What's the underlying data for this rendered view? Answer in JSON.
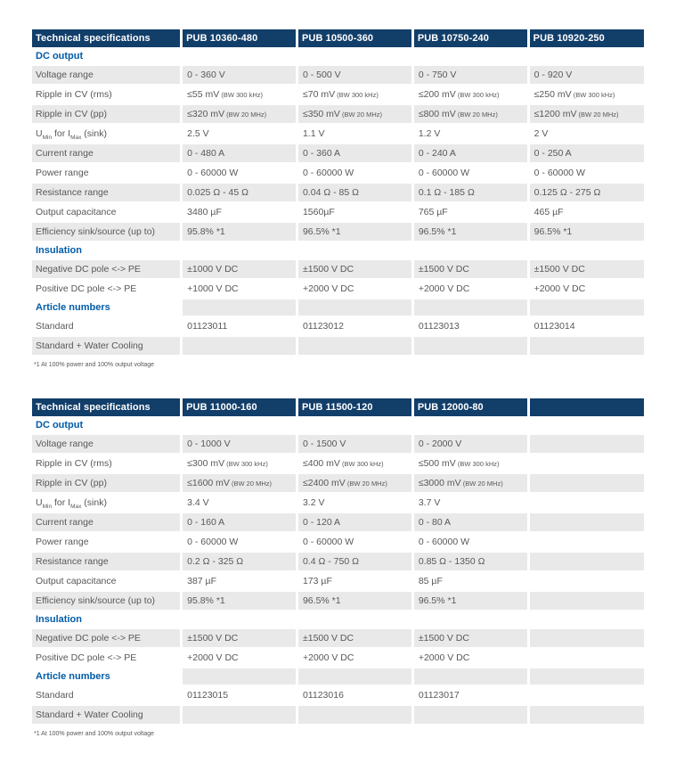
{
  "colors": {
    "header_bg": "#123e6a",
    "header_text": "#ffffff",
    "section_text": "#005ca9",
    "row_alt_bg": "#e9e9e9",
    "body_text": "#58585a",
    "page_bg": "#ffffff"
  },
  "tables": [
    {
      "headers": [
        "Technical specifications",
        "PUB 10360-480",
        "PUB 10500-360",
        "PUB 10750-240",
        "PUB 10920-250"
      ],
      "footnote": "*1 At 100% power and 100% output voltage",
      "rows": [
        {
          "type": "section",
          "label": "DC output"
        },
        {
          "type": "data",
          "label": "Voltage range",
          "values": [
            "0 - 360 V",
            "0 - 500 V",
            "0 - 750 V",
            "0 - 920 V"
          ]
        },
        {
          "type": "data",
          "label": "Ripple in CV (rms)",
          "values": [
            {
              "main": "≤55 mV",
              "note": "(BW 300 kHz)"
            },
            {
              "main": "≤70 mV",
              "note": "(BW 300 kHz)"
            },
            {
              "main": "≤200 mV",
              "note": "(BW 300 kHz)"
            },
            {
              "main": "≤250 mV",
              "note": "(BW 300 kHz)"
            }
          ]
        },
        {
          "type": "data",
          "label": "Ripple in CV (pp)",
          "values": [
            {
              "main": "≤320 mV",
              "note": "(BW 20 MHz)"
            },
            {
              "main": "≤350 mV",
              "note": "(BW 20 MHz)"
            },
            {
              "main": "≤800 mV",
              "note": "(BW 20 MHz)"
            },
            {
              "main": "≤1200 mV",
              "note": "(BW 20 MHz)"
            }
          ]
        },
        {
          "type": "data",
          "label": {
            "rich": [
              {
                "t": "U"
              },
              {
                "t": "Min",
                "sub": true
              },
              {
                "t": " for I"
              },
              {
                "t": "Max",
                "sub": true
              },
              {
                "t": " (sink)"
              }
            ]
          },
          "values": [
            "2.5 V",
            "1.1 V",
            "1.2 V",
            "2 V"
          ]
        },
        {
          "type": "data",
          "label": "Current range",
          "values": [
            "0 - 480 A",
            "0 - 360 A",
            "0 - 240 A",
            "0 - 250 A"
          ]
        },
        {
          "type": "data",
          "label": "Power range",
          "values": [
            "0 - 60000 W",
            "0 - 60000 W",
            "0 - 60000 W",
            "0 - 60000 W"
          ]
        },
        {
          "type": "data",
          "label": "Resistance range",
          "values": [
            "0.025 Ω - 45 Ω",
            "0.04 Ω - 85 Ω",
            "0.1 Ω - 185 Ω",
            "0.125 Ω - 275 Ω"
          ]
        },
        {
          "type": "data",
          "label": "Output capacitance",
          "values": [
            "3480 µF",
            "1560µF",
            "765 µF",
            "465 µF"
          ]
        },
        {
          "type": "data",
          "label": "Efficiency sink/source (up to)",
          "values": [
            "95.8% *1",
            "96.5% *1",
            "96.5% *1",
            "96.5% *1"
          ]
        },
        {
          "type": "section",
          "label": "Insulation"
        },
        {
          "type": "data",
          "label": "Negative DC pole <-> PE",
          "values": [
            "±1000 V DC",
            "±1500 V DC",
            "±1500 V DC",
            "±1500 V DC"
          ]
        },
        {
          "type": "data",
          "label": "Positive DC pole <-> PE",
          "values": [
            "+1000 V DC",
            "+2000 V DC",
            "+2000 V DC",
            "+2000 V DC"
          ]
        },
        {
          "type": "section",
          "label": "Article numbers"
        },
        {
          "type": "data",
          "label": "Standard",
          "values": [
            "01123011",
            "01123012",
            "01123013",
            "01123014"
          ]
        },
        {
          "type": "data",
          "label": "Standard + Water Cooling",
          "values": [
            "",
            "",
            "",
            ""
          ]
        }
      ]
    },
    {
      "headers": [
        "Technical specifications",
        "PUB 11000-160",
        "PUB 11500-120",
        "PUB 12000-80",
        ""
      ],
      "footnote": "*1 At 100% power and 100% output voltage",
      "rows": [
        {
          "type": "section",
          "label": "DC output"
        },
        {
          "type": "data",
          "label": "Voltage range",
          "values": [
            "0 - 1000 V",
            "0 - 1500 V",
            "0 - 2000 V",
            ""
          ]
        },
        {
          "type": "data",
          "label": "Ripple in CV (rms)",
          "values": [
            {
              "main": "≤300 mV",
              "note": "(BW 300 kHz)"
            },
            {
              "main": "≤400 mV",
              "note": "(BW 300 kHz)"
            },
            {
              "main": "≤500 mV",
              "note": "(BW 300 kHz)"
            },
            ""
          ]
        },
        {
          "type": "data",
          "label": "Ripple in CV (pp)",
          "values": [
            {
              "main": "≤1600 mV",
              "note": "(BW 20 MHz)"
            },
            {
              "main": "≤2400 mV",
              "note": "(BW 20 MHz)"
            },
            {
              "main": "≤3000 mV",
              "note": "(BW 20 MHz)"
            },
            ""
          ]
        },
        {
          "type": "data",
          "label": {
            "rich": [
              {
                "t": "U"
              },
              {
                "t": "Min",
                "sub": true
              },
              {
                "t": " for I"
              },
              {
                "t": "Max",
                "sub": true
              },
              {
                "t": " (sink)"
              }
            ]
          },
          "values": [
            "3.4 V",
            "3.2 V",
            "3.7 V",
            ""
          ]
        },
        {
          "type": "data",
          "label": "Current range",
          "values": [
            "0 - 160 A",
            "0 - 120 A",
            "0 - 80 A",
            ""
          ]
        },
        {
          "type": "data",
          "label": "Power range",
          "values": [
            "0 - 60000 W",
            "0 - 60000 W",
            "0 - 60000 W",
            ""
          ]
        },
        {
          "type": "data",
          "label": "Resistance range",
          "values": [
            "0.2 Ω - 325 Ω",
            "0.4 Ω - 750 Ω",
            "0.85 Ω - 1350 Ω",
            ""
          ]
        },
        {
          "type": "data",
          "label": "Output capacitance",
          "values": [
            "387 µF",
            "173 µF",
            "85 µF",
            ""
          ]
        },
        {
          "type": "data",
          "label": "Efficiency sink/source (up to)",
          "values": [
            "95.8% *1",
            "96.5% *1",
            "96.5% *1",
            ""
          ]
        },
        {
          "type": "section",
          "label": "Insulation"
        },
        {
          "type": "data",
          "label": "Negative DC pole <-> PE",
          "values": [
            "±1500 V DC",
            "±1500 V DC",
            "±1500 V DC",
            ""
          ]
        },
        {
          "type": "data",
          "label": "Positive DC pole <-> PE",
          "values": [
            "+2000 V DC",
            "+2000 V DC",
            "+2000 V DC",
            ""
          ]
        },
        {
          "type": "section",
          "label": "Article numbers"
        },
        {
          "type": "data",
          "label": "Standard",
          "values": [
            "01123015",
            "01123016",
            "01123017",
            ""
          ]
        },
        {
          "type": "data",
          "label": "Standard + Water Cooling",
          "values": [
            "",
            "",
            "",
            ""
          ]
        }
      ]
    }
  ]
}
